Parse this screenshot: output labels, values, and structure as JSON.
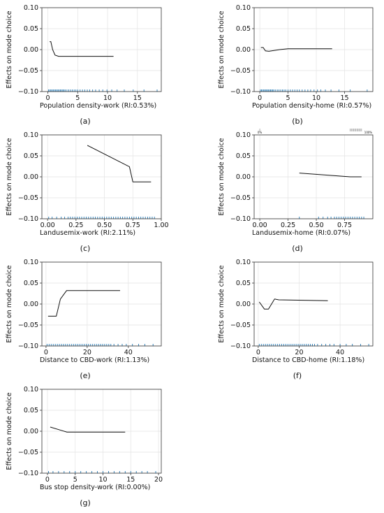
{
  "chart_data": [
    {
      "id": "a",
      "type": "line",
      "caption": "(a)",
      "xlabel": "Population density-work (RI:0.53%)",
      "ylabel": "Effects on mode choice",
      "xlim": [
        -1,
        19
      ],
      "ylim": [
        -0.1,
        0.1
      ],
      "xticks": [
        0,
        5,
        10,
        15
      ],
      "xtick_labels": [
        "0",
        "5",
        "10",
        "15"
      ],
      "yticks": [
        -0.1,
        -0.05,
        0,
        0.05,
        0.1
      ],
      "ytick_labels": [
        "−0.10",
        "−0.05",
        "0.00",
        "0.05",
        "0.10"
      ],
      "grid": true,
      "series": [
        {
          "x": [
            0.3,
            0.5,
            0.8,
            1.2,
            1.8,
            3,
            11
          ],
          "y": [
            0.019,
            0.019,
            0.0,
            -0.013,
            -0.016,
            -0.016,
            -0.016
          ]
        }
      ],
      "rug": [
        0.1,
        0.3,
        0.5,
        0.7,
        0.9,
        1.1,
        1.3,
        1.5,
        1.7,
        1.9,
        2.1,
        2.3,
        2.5,
        2.7,
        2.9,
        3.2,
        3.5,
        3.8,
        4.1,
        4.4,
        4.7,
        5.0,
        5.4,
        5.8,
        6.2,
        6.6,
        7.0,
        7.5,
        8.0,
        8.6,
        9.2,
        9.9,
        10.7,
        11.6,
        12.8,
        14.3,
        16.1,
        18.3
      ]
    },
    {
      "id": "b",
      "type": "line",
      "caption": "(b)",
      "xlabel": "Population density-home (RI:0.57%)",
      "ylabel": "Effects on mode choice",
      "xlim": [
        -1,
        20
      ],
      "ylim": [
        -0.1,
        0.1
      ],
      "xticks": [
        0,
        5,
        10,
        15
      ],
      "xtick_labels": [
        "0",
        "5",
        "10",
        "15"
      ],
      "yticks": [
        -0.1,
        -0.05,
        0,
        0.05,
        0.1
      ],
      "ytick_labels": [
        "−0.10",
        "−0.05",
        "0.00",
        "0.05",
        "0.10"
      ],
      "grid": true,
      "series": [
        {
          "x": [
            0.2,
            0.6,
            1.0,
            1.6,
            3.5,
            5,
            12.8
          ],
          "y": [
            0.005,
            0.005,
            -0.003,
            -0.004,
            0.0,
            0.002,
            0.002
          ]
        }
      ],
      "rug": [
        0.1,
        0.3,
        0.5,
        0.7,
        0.9,
        1.1,
        1.3,
        1.5,
        1.7,
        1.9,
        2.1,
        2.3,
        2.5,
        2.8,
        3.1,
        3.4,
        3.7,
        4.0,
        4.3,
        4.6,
        5.0,
        5.4,
        5.8,
        6.2,
        6.6,
        7.0,
        7.5,
        8.0,
        8.5,
        9.0,
        9.6,
        10.2,
        10.8,
        11.6,
        12.6,
        14.0,
        16.0,
        19.0
      ]
    },
    {
      "id": "c",
      "type": "line",
      "caption": "(c)",
      "xlabel": "Landusemix-work (RI:2.11%)",
      "ylabel": "Effects on mode choice",
      "xlim": [
        -0.05,
        1.0
      ],
      "ylim": [
        -0.1,
        0.1
      ],
      "xticks": [
        0,
        0.25,
        0.5,
        0.75,
        1.0
      ],
      "xtick_labels": [
        "0.00",
        "0.25",
        "0.50",
        "0.75",
        "1.00"
      ],
      "yticks": [
        -0.1,
        -0.05,
        0,
        0.05,
        0.1
      ],
      "ytick_labels": [
        "−0.10",
        "−0.05",
        "0.00",
        "0.05",
        "0.10"
      ],
      "grid": true,
      "series": [
        {
          "x": [
            0.35,
            0.72,
            0.75,
            0.91
          ],
          "y": [
            0.075,
            0.024,
            -0.012,
            -0.012
          ]
        }
      ],
      "rug": [
        0.01,
        0.04,
        0.08,
        0.12,
        0.15,
        0.18,
        0.2,
        0.22,
        0.24,
        0.26,
        0.28,
        0.3,
        0.32,
        0.34,
        0.36,
        0.38,
        0.4,
        0.42,
        0.44,
        0.46,
        0.48,
        0.5,
        0.52,
        0.54,
        0.56,
        0.58,
        0.6,
        0.62,
        0.64,
        0.66,
        0.68,
        0.7,
        0.72,
        0.74,
        0.76,
        0.78,
        0.8,
        0.82,
        0.84,
        0.86,
        0.88,
        0.9,
        0.92,
        0.94
      ]
    },
    {
      "id": "d",
      "type": "line",
      "caption": "(d)",
      "xlabel": "Landusemix-home (RI:0.07%)",
      "ylabel": "Effects on mode choice",
      "xlim": [
        -0.05,
        1.0
      ],
      "ylim": [
        -0.1,
        0.1
      ],
      "xticks": [
        0,
        0.25,
        0.5,
        0.75
      ],
      "xtick_labels": [
        "0.00",
        "0.25",
        "0.50",
        "0.75"
      ],
      "yticks": [
        -0.1,
        -0.05,
        0,
        0.05,
        0.1
      ],
      "ytick_labels": [
        "−0.10",
        "−0.05",
        "0.00",
        "0.05",
        "0.10"
      ],
      "grid": true,
      "top_labels": [
        {
          "x": 0.0,
          "text": "0%"
        },
        {
          "x": 0.96,
          "text": "100%"
        }
      ],
      "top_rug": [
        0.0,
        0.8,
        0.81,
        0.82,
        0.83,
        0.84,
        0.85,
        0.86,
        0.87,
        0.88,
        0.89,
        0.9
      ],
      "series": [
        {
          "x": [
            0.35,
            0.8,
            0.9
          ],
          "y": [
            0.009,
            0.0,
            0.0
          ]
        }
      ],
      "rug": [
        0.35,
        0.52,
        0.56,
        0.6,
        0.63,
        0.66,
        0.68,
        0.7,
        0.72,
        0.74,
        0.76,
        0.78,
        0.8,
        0.82,
        0.84,
        0.86,
        0.88,
        0.9,
        0.92
      ]
    },
    {
      "id": "e",
      "type": "line",
      "caption": "(e)",
      "xlabel": "Distance to CBD-work (RI:1.13%)",
      "ylabel": "Effects on mode choice",
      "xlim": [
        -2,
        56
      ],
      "ylim": [
        -0.1,
        0.1
      ],
      "xticks": [
        0,
        20,
        40
      ],
      "xtick_labels": [
        "0",
        "20",
        "40"
      ],
      "yticks": [
        -0.1,
        -0.05,
        0,
        0.05,
        0.1
      ],
      "ytick_labels": [
        "−0.10",
        "−0.05",
        "0.00",
        "0.05",
        "0.10"
      ],
      "grid": true,
      "series": [
        {
          "x": [
            1,
            5,
            7,
            10,
            36
          ],
          "y": [
            -0.029,
            -0.029,
            0.012,
            0.032,
            0.032
          ]
        }
      ],
      "rug": [
        0.5,
        1.5,
        2.5,
        3.5,
        4.5,
        5.5,
        6.5,
        7.5,
        8.5,
        9.5,
        10.5,
        11.5,
        12.5,
        13.5,
        14.5,
        15.5,
        16.5,
        17.5,
        18.5,
        19.5,
        20.5,
        21.5,
        22.5,
        23.5,
        24.5,
        25.5,
        26.5,
        27.5,
        28.5,
        29.5,
        30.5,
        31.5,
        33,
        35,
        37,
        39,
        42,
        45,
        48,
        52
      ]
    },
    {
      "id": "f",
      "type": "line",
      "caption": "(f)",
      "xlabel": "Distance to CBD-home (RI:1.18%)",
      "ylabel": "Effects on mode choice",
      "xlim": [
        -2,
        56
      ],
      "ylim": [
        -0.1,
        0.1
      ],
      "xticks": [
        0,
        20,
        40
      ],
      "xtick_labels": [
        "0",
        "20",
        "40"
      ],
      "yticks": [
        -0.1,
        -0.05,
        0,
        0.05,
        0.1
      ],
      "ytick_labels": [
        "−0.10",
        "−0.05",
        "0.00",
        "0.05",
        "0.10"
      ],
      "grid": true,
      "series": [
        {
          "x": [
            0.5,
            3,
            5,
            7,
            8,
            10,
            34
          ],
          "y": [
            0.005,
            -0.012,
            -0.012,
            0.004,
            0.012,
            0.01,
            0.008
          ]
        }
      ],
      "rug": [
        0.5,
        1.5,
        2.5,
        3.5,
        4.5,
        5.5,
        6.5,
        7.5,
        8.5,
        9.5,
        10.5,
        11.5,
        12.5,
        13.5,
        14.5,
        15.5,
        16.5,
        17.5,
        18.5,
        19.5,
        20.5,
        21.5,
        22.5,
        23.5,
        24.5,
        25.5,
        26.5,
        27.5,
        29,
        31,
        33,
        35,
        37,
        40,
        43,
        46,
        50,
        54
      ]
    },
    {
      "id": "g",
      "type": "line",
      "caption": "(g)",
      "xlabel": "Bus stop density-work (RI:0.00%)",
      "ylabel": "Effects on mode choice",
      "xlim": [
        -1,
        20.5
      ],
      "ylim": [
        -0.1,
        0.1
      ],
      "xticks": [
        0,
        5,
        10,
        15,
        20
      ],
      "xtick_labels": [
        "0",
        "5",
        "10",
        "15",
        "20"
      ],
      "yticks": [
        -0.1,
        -0.05,
        0,
        0.05,
        0.1
      ],
      "ytick_labels": [
        "−0.10",
        "−0.05",
        "0.00",
        "0.05",
        "0.10"
      ],
      "grid": true,
      "series": [
        {
          "x": [
            0.5,
            2.5,
            3.5,
            14
          ],
          "y": [
            0.01,
            0.002,
            -0.002,
            -0.002
          ]
        }
      ],
      "rug": [
        0.2,
        1,
        2,
        3,
        4,
        5,
        6,
        7,
        8,
        9,
        10,
        11,
        12,
        13,
        14,
        15,
        16,
        17,
        18,
        19.5
      ]
    }
  ]
}
